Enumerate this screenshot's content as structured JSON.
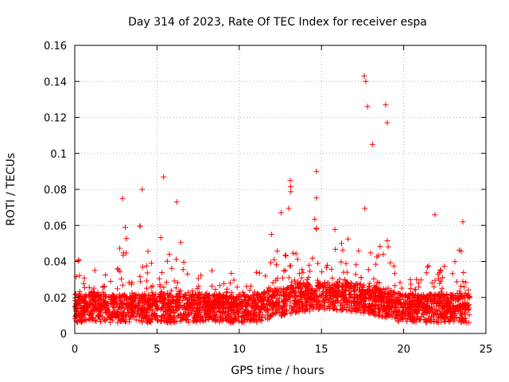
{
  "chart_data": {
    "type": "scatter",
    "title": "Day 314 of 2023, Rate Of TEC Index for receiver espa",
    "xlabel": "GPS time / hours",
    "ylabel": "ROTI / TECUs",
    "xlim": [
      0,
      25
    ],
    "ylim": [
      0,
      0.16
    ],
    "xticks": [
      0,
      5,
      10,
      15,
      20,
      25
    ],
    "yticks": [
      0,
      0.02,
      0.04,
      0.06,
      0.08,
      0.1,
      0.12,
      0.14,
      0.16
    ],
    "xtick_labels": [
      "0",
      "5",
      "10",
      "15",
      "20",
      "25"
    ],
    "ytick_labels": [
      "0",
      "0.02",
      "0.04",
      "0.06",
      "0.08",
      "0.1",
      "0.12",
      "0.14",
      "0.16"
    ],
    "grid": true,
    "marker": "+",
    "color": "#ff0000",
    "series": [
      {
        "name": "ROTI",
        "x_range": [
          0,
          24
        ],
        "baseline_band": [
          0.005,
          0.03
        ],
        "notable_points": [
          {
            "x": 2.9,
            "y": 0.075
          },
          {
            "x": 4.1,
            "y": 0.08
          },
          {
            "x": 5.4,
            "y": 0.087
          },
          {
            "x": 6.2,
            "y": 0.073
          },
          {
            "x": 13.1,
            "y": 0.085
          },
          {
            "x": 14.7,
            "y": 0.09
          },
          {
            "x": 17.6,
            "y": 0.143
          },
          {
            "x": 17.7,
            "y": 0.14
          },
          {
            "x": 17.8,
            "y": 0.126
          },
          {
            "x": 18.1,
            "y": 0.105
          },
          {
            "x": 18.9,
            "y": 0.127
          },
          {
            "x": 19.0,
            "y": 0.117
          },
          {
            "x": 21.9,
            "y": 0.066
          },
          {
            "x": 23.6,
            "y": 0.062
          }
        ]
      }
    ]
  }
}
